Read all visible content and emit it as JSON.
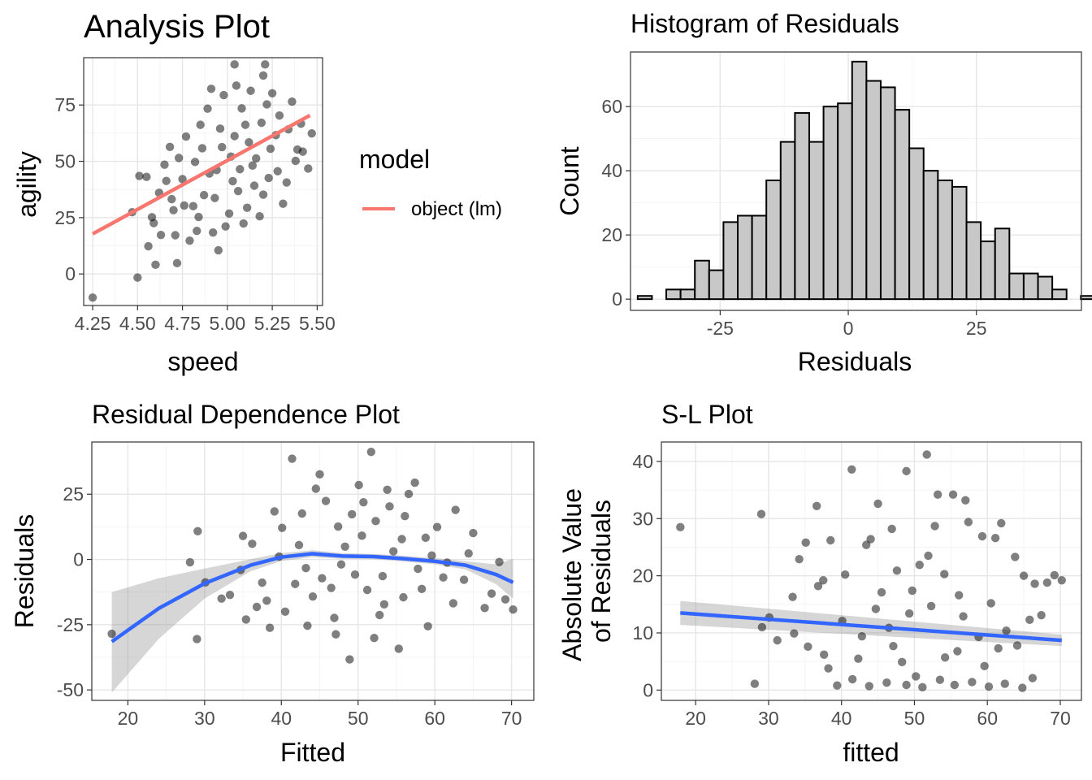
{
  "chart_data": [
    {
      "id": "analysis",
      "type": "scatter",
      "title": "Analysis Plot",
      "xlabel": "speed",
      "ylabel": "agility",
      "xlim": [
        4.2,
        5.53
      ],
      "ylim": [
        -14,
        96
      ],
      "x_ticks": [
        "4.25",
        "4.50",
        "4.75",
        "5.00",
        "5.25",
        "5.50"
      ],
      "y_ticks": [
        "0",
        "25",
        "50",
        "75"
      ],
      "point_color": "#000000",
      "point_opacity": 0.5,
      "points": [
        [
          4.25,
          -10.5
        ],
        [
          4.5,
          -1.6
        ],
        [
          4.56,
          12.3
        ],
        [
          4.47,
          27.4
        ],
        [
          4.6,
          4.1
        ],
        [
          4.72,
          4.8
        ],
        [
          4.71,
          17.2
        ],
        [
          4.59,
          22.6
        ],
        [
          4.51,
          43.5
        ],
        [
          4.55,
          43.1
        ],
        [
          4.62,
          36
        ],
        [
          4.7,
          28.3
        ],
        [
          4.79,
          14.8
        ],
        [
          4.83,
          19.1
        ],
        [
          4.87,
          35
        ],
        [
          4.76,
          30.4
        ],
        [
          4.82,
          49.7
        ],
        [
          4.92,
          18.4
        ],
        [
          4.95,
          10.5
        ],
        [
          4.99,
          21.1
        ],
        [
          5.01,
          26.8
        ],
        [
          4.9,
          44.6
        ],
        [
          4.97,
          56.3
        ],
        [
          5.04,
          61.2
        ],
        [
          5.12,
          58.4
        ],
        [
          5.07,
          46.5
        ],
        [
          5.15,
          39.2
        ],
        [
          5.2,
          35.2
        ],
        [
          5.18,
          25.6
        ],
        [
          5.09,
          22.4
        ],
        [
          5.28,
          45.6
        ],
        [
          5.33,
          40.6
        ],
        [
          5.38,
          50.2
        ],
        [
          5.42,
          54.3
        ],
        [
          5.45,
          46.8
        ],
        [
          5.47,
          62.4
        ],
        [
          5.29,
          70.3
        ],
        [
          5.22,
          75.3
        ],
        [
          5.13,
          81.3
        ],
        [
          5.05,
          83.6
        ],
        [
          4.98,
          79.4
        ],
        [
          5.04,
          93
        ],
        [
          5.21,
          93
        ],
        [
          5.2,
          88.1
        ],
        [
          5.25,
          80.2
        ],
        [
          5.36,
          76.5
        ],
        [
          5.41,
          66.7
        ],
        [
          4.85,
          66.2
        ],
        [
          4.77,
          61
        ],
        [
          4.68,
          56.4
        ],
        [
          4.65,
          48.5
        ],
        [
          4.93,
          33.7
        ],
        [
          4.89,
          73.4
        ],
        [
          5.1,
          66.2
        ],
        [
          5.27,
          61.6
        ],
        [
          5.02,
          52.1
        ],
        [
          4.96,
          64.5
        ],
        [
          4.75,
          42.1
        ],
        [
          5.11,
          29.4
        ],
        [
          5.16,
          51.3
        ],
        [
          4.58,
          25.2
        ],
        [
          4.63,
          17.3
        ],
        [
          4.81,
          30.1
        ],
        [
          4.86,
          55.8
        ],
        [
          5.08,
          73.5
        ],
        [
          5.24,
          55.6
        ],
        [
          5.34,
          64.2
        ],
        [
          5.31,
          31.2
        ],
        [
          4.94,
          46.1
        ],
        [
          5.06,
          36.8
        ],
        [
          4.69,
          33.2
        ],
        [
          5.14,
          48.1
        ],
        [
          4.84,
          25.3
        ],
        [
          5.19,
          67.1
        ],
        [
          4.91,
          82.2
        ],
        [
          5.03,
          41.2
        ],
        [
          5.23,
          42.6
        ],
        [
          4.73,
          51.5
        ],
        [
          5.39,
          55.2
        ],
        [
          4.66,
          41.3
        ]
      ],
      "fit_line": {
        "label": "object (lm)",
        "color": "#f8766d",
        "x": [
          4.25,
          5.46
        ],
        "y": [
          17.8,
          70.4
        ]
      }
    },
    {
      "id": "histogram",
      "type": "bar",
      "title": "Histogram of Residuals",
      "xlabel": "Residuals",
      "ylabel": "Count",
      "xlim": [
        -42.5,
        45.5
      ],
      "ylim": [
        -3.5,
        77
      ],
      "x_ticks": [
        "-25",
        "0",
        "25"
      ],
      "y_ticks": [
        "0",
        "20",
        "40",
        "60"
      ],
      "bin_width": 2.79,
      "bin_start": -41.1,
      "fill_color": "#c8c8c8",
      "values": [
        1,
        0,
        3,
        3,
        12,
        9,
        24,
        26,
        26,
        37,
        49,
        58,
        49,
        60,
        61,
        74,
        68,
        66,
        59,
        47,
        40,
        37,
        35,
        24,
        18,
        22,
        8,
        8,
        7,
        3,
        0,
        1,
        1
      ]
    },
    {
      "id": "dependence",
      "type": "scatter",
      "title": "Residual Dependence Plot",
      "xlabel": "Fitted",
      "ylabel": "Residuals",
      "xlim": [
        15.3,
        72.9
      ],
      "ylim": [
        -54,
        45
      ],
      "x_ticks": [
        "20",
        "30",
        "40",
        "50",
        "60",
        "70"
      ],
      "y_ticks": [
        "-50",
        "-25",
        "0",
        "25"
      ],
      "point_color": "#000000",
      "point_opacity": 0.5,
      "points": [
        [
          17.9,
          -28.5
        ],
        [
          28.1,
          -1.1
        ],
        [
          29,
          -30.5
        ],
        [
          29.1,
          10.8
        ],
        [
          30.1,
          -8.8
        ],
        [
          32.2,
          -15
        ],
        [
          34.7,
          -4
        ],
        [
          35,
          9
        ],
        [
          35.4,
          -23
        ],
        [
          38.5,
          -26.2
        ],
        [
          40.5,
          -20
        ],
        [
          41.4,
          38.6
        ],
        [
          43.4,
          -25.4
        ],
        [
          45,
          32.6
        ],
        [
          46.5,
          -10.9
        ],
        [
          48.9,
          -38.3
        ],
        [
          50.7,
          21.9
        ],
        [
          51.7,
          41.2
        ],
        [
          52.3,
          14.7
        ],
        [
          53.8,
          26.7
        ],
        [
          55.3,
          -34.2
        ],
        [
          56.1,
          16.6
        ],
        [
          57.4,
          29.4
        ],
        [
          59.6,
          1.5
        ],
        [
          61.1,
          -6.9
        ],
        [
          62.4,
          -16.8
        ],
        [
          62.7,
          19
        ],
        [
          63.8,
          -7.8
        ],
        [
          65,
          10.1
        ],
        [
          66.5,
          -18.6
        ],
        [
          67.4,
          -13.1
        ],
        [
          68.4,
          -1
        ],
        [
          69.2,
          -15.3
        ],
        [
          70.2,
          -19.2
        ],
        [
          36.2,
          6
        ],
        [
          39.1,
          18.4
        ],
        [
          42.3,
          5.5
        ],
        [
          44.1,
          -14.2
        ],
        [
          47.4,
          12.6
        ],
        [
          49.6,
          -5.8
        ],
        [
          52.8,
          -21.3
        ],
        [
          55.7,
          7.8
        ],
        [
          58.3,
          -11.3
        ],
        [
          60.3,
          12.4
        ],
        [
          37.5,
          -8.9
        ],
        [
          45.8,
          22.4
        ],
        [
          50.1,
          28.5
        ],
        [
          53.4,
          -17.2
        ],
        [
          56.6,
          25.1
        ],
        [
          59.1,
          -25.6
        ],
        [
          43.2,
          -3.3
        ],
        [
          48.3,
          4.9
        ],
        [
          51.2,
          -11.7
        ],
        [
          54.6,
          3.1
        ],
        [
          57.8,
          -3.6
        ],
        [
          40.1,
          12.1
        ],
        [
          46.9,
          -22.4
        ],
        [
          49.2,
          17.3
        ],
        [
          61.6,
          -1.2
        ],
        [
          64.4,
          2.3
        ],
        [
          33.3,
          -13.6
        ],
        [
          38.1,
          -15.8
        ],
        [
          42.7,
          17.6
        ],
        [
          45.3,
          -7.2
        ],
        [
          47.8,
          -1.9
        ],
        [
          50.5,
          9.1
        ],
        [
          53.2,
          -6.4
        ],
        [
          55.9,
          -14.5
        ],
        [
          58.8,
          8.3
        ],
        [
          44.5,
          27.1
        ],
        [
          41.8,
          -9.4
        ],
        [
          39.7,
          1.1
        ],
        [
          47.1,
          -28.7
        ],
        [
          52.1,
          -30.1
        ],
        [
          54.1,
          20.3
        ],
        [
          36.8,
          -18.2
        ]
      ],
      "smooth": {
        "color": "#3366ff",
        "band_color": "#999999",
        "x": [
          17.9,
          24,
          30,
          36,
          40,
          44,
          48,
          52,
          56,
          60,
          64,
          68,
          70.2
        ],
        "y": [
          -31.5,
          -18.8,
          -9.2,
          -2.2,
          0.9,
          2.2,
          1.3,
          1.1,
          0.3,
          -0.7,
          -2.2,
          -5.8,
          -8.8
        ],
        "lower": [
          -51,
          -30.5,
          -15,
          -4.5,
          -0.6,
          0.9,
          0.2,
          0.1,
          -0.8,
          -1.9,
          -3.8,
          -9.5,
          -15
        ],
        "upper": [
          -12.5,
          -7.2,
          -3.5,
          0.1,
          2.4,
          3.5,
          2.4,
          2.1,
          1.4,
          0.5,
          -0.7,
          -1.9,
          0.3
        ]
      }
    },
    {
      "id": "scale_location",
      "type": "scatter",
      "title": "S-L Plot",
      "xlabel": "fitted",
      "ylabel": "Absolute Value of Residuals",
      "ylabel_lines": [
        "Absolute Value",
        "of Residuals"
      ],
      "xlim": [
        15.3,
        72.9
      ],
      "ylim": [
        -1.8,
        43.4
      ],
      "x_ticks": [
        "20",
        "30",
        "40",
        "50",
        "60",
        "70"
      ],
      "y_ticks": [
        "0",
        "10",
        "20",
        "30",
        "40"
      ],
      "point_color": "#000000",
      "point_opacity": 0.5,
      "points": [
        [
          17.9,
          28.5
        ],
        [
          28.1,
          1.1
        ],
        [
          29,
          30.8
        ],
        [
          29.1,
          11
        ],
        [
          30.1,
          12.7
        ],
        [
          31.2,
          8.7
        ],
        [
          33.3,
          16.3
        ],
        [
          34.2,
          22.9
        ],
        [
          35.1,
          25.8
        ],
        [
          36.6,
          32.2
        ],
        [
          37.5,
          19.2
        ],
        [
          38.5,
          26.2
        ],
        [
          40.5,
          20.2
        ],
        [
          41.4,
          38.6
        ],
        [
          43.4,
          25.4
        ],
        [
          45,
          32.6
        ],
        [
          46.9,
          28.2
        ],
        [
          48.9,
          38.3
        ],
        [
          50.7,
          21.9
        ],
        [
          51.7,
          41.2
        ],
        [
          53.2,
          34.2
        ],
        [
          55.3,
          34.2
        ],
        [
          57.4,
          29.4
        ],
        [
          57,
          33.2
        ],
        [
          59.3,
          26.9
        ],
        [
          61.1,
          26.6
        ],
        [
          61.9,
          29.2
        ],
        [
          63.8,
          23.3
        ],
        [
          65,
          20
        ],
        [
          66.5,
          18.6
        ],
        [
          67.4,
          13.1
        ],
        [
          68.2,
          18.8
        ],
        [
          69.2,
          20.1
        ],
        [
          70.2,
          19.2
        ],
        [
          65.8,
          12.3
        ],
        [
          64.1,
          7.8
        ],
        [
          62.6,
          10.4
        ],
        [
          60.5,
          15.2
        ],
        [
          58.8,
          9.3
        ],
        [
          56.1,
          16.6
        ],
        [
          54.2,
          5.7
        ],
        [
          52.3,
          14.7
        ],
        [
          50.2,
          2.4
        ],
        [
          48.3,
          4.9
        ],
        [
          46.5,
          10.9
        ],
        [
          44.7,
          14.2
        ],
        [
          42.3,
          5.5
        ],
        [
          40.1,
          12.1
        ],
        [
          38.2,
          3.8
        ],
        [
          36.8,
          18.2
        ],
        [
          35.4,
          7.6
        ],
        [
          33.5,
          9.9
        ],
        [
          39.4,
          0.8
        ],
        [
          41.5,
          1.9
        ],
        [
          43.8,
          0.7
        ],
        [
          46.2,
          1.3
        ],
        [
          48.9,
          0.9
        ],
        [
          51.1,
          0.5
        ],
        [
          53.5,
          1.8
        ],
        [
          55.5,
          0.9
        ],
        [
          57.9,
          1.4
        ],
        [
          60.2,
          0.6
        ],
        [
          62.4,
          1.1
        ],
        [
          64.8,
          0.4
        ],
        [
          66.2,
          2.1
        ],
        [
          47.6,
          20.9
        ],
        [
          49.7,
          17.4
        ],
        [
          51.9,
          23.5
        ],
        [
          54.1,
          20.3
        ],
        [
          56.7,
          12.9
        ],
        [
          45.5,
          17.1
        ],
        [
          42.8,
          9.4
        ],
        [
          37.6,
          6.2
        ],
        [
          59.6,
          4.2
        ],
        [
          61.5,
          7.3
        ],
        [
          44,
          26.4
        ],
        [
          52.8,
          28.7
        ],
        [
          49.3,
          13.4
        ],
        [
          47.1,
          7.7
        ],
        [
          55.9,
          6.8
        ]
      ],
      "fit_line": {
        "color": "#3366ff",
        "band_color": "#999999",
        "x": [
          17.9,
          70.2
        ],
        "y": [
          13.5,
          8.7
        ],
        "lower": [
          11.4,
          7.7
        ],
        "upper": [
          15.6,
          9.7
        ]
      }
    }
  ]
}
